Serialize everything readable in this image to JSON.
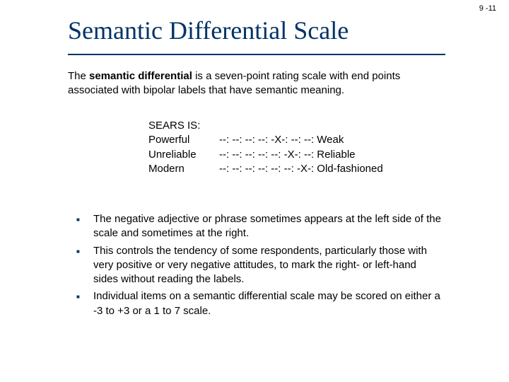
{
  "page_number": "9 -11",
  "title": "Semantic Differential Scale",
  "intro_prefix": "The ",
  "intro_bold": "semantic differential",
  "intro_suffix": " is a seven-point rating scale with end points associated with bipolar labels that have semantic meaning.",
  "example": {
    "header": "SEARS IS:",
    "rows": [
      {
        "left": "Powerful",
        "scale": "--: --: --: --: -X-: --: --:",
        "right": "Weak"
      },
      {
        "left": "Unreliable",
        "scale": "--: --: --: --: --: -X-: --:",
        "right": "Reliable"
      },
      {
        "left": "Modern",
        "scale": "--: --: --: --: --: --: -X-:",
        "right": "Old-fashioned"
      }
    ]
  },
  "bullets": [
    "The negative adjective or phrase sometimes appears at the left side of the scale and sometimes at the right.",
    "This controls the tendency of some respondents, particularly those with very positive or very negative attitudes, to mark the right- or left-hand sides without reading the labels.",
    "Individual items on a semantic differential scale may be scored on either a -3 to +3 or a 1 to 7 scale."
  ],
  "colors": {
    "title": "#003366",
    "bullet_marker": "#003366",
    "text": "#000000",
    "background": "#ffffff"
  },
  "fonts": {
    "title_family": "Times New Roman",
    "title_size_pt": 28,
    "body_family": "Verdana",
    "body_size_pt": 11
  }
}
